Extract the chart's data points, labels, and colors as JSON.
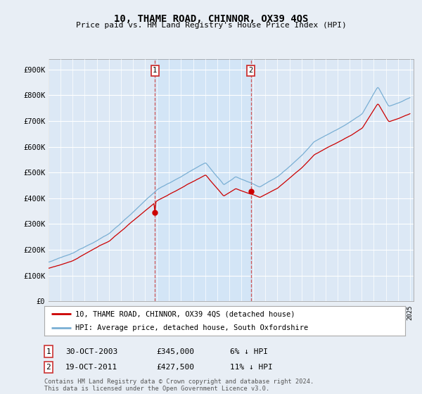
{
  "title": "10, THAME ROAD, CHINNOR, OX39 4QS",
  "subtitle": "Price paid vs. HM Land Registry's House Price Index (HPI)",
  "ylabel_ticks": [
    "£0",
    "£100K",
    "£200K",
    "£300K",
    "£400K",
    "£500K",
    "£600K",
    "£700K",
    "£800K",
    "£900K"
  ],
  "ytick_values": [
    0,
    100000,
    200000,
    300000,
    400000,
    500000,
    600000,
    700000,
    800000,
    900000
  ],
  "ylim": [
    0,
    940000
  ],
  "xlim_start": 1995.0,
  "xlim_end": 2025.3,
  "hpi_color": "#7aafd4",
  "price_color": "#cc0000",
  "marker1_year": 2003.83,
  "marker1_price": 345000,
  "marker2_year": 2011.8,
  "marker2_price": 427500,
  "shade_color": "#d0e4f7",
  "legend_label1": "10, THAME ROAD, CHINNOR, OX39 4QS (detached house)",
  "legend_label2": "HPI: Average price, detached house, South Oxfordshire",
  "table_row1": [
    "1",
    "30-OCT-2003",
    "£345,000",
    "6% ↓ HPI"
  ],
  "table_row2": [
    "2",
    "19-OCT-2011",
    "£427,500",
    "11% ↓ HPI"
  ],
  "footer": "Contains HM Land Registry data © Crown copyright and database right 2024.\nThis data is licensed under the Open Government Licence v3.0.",
  "background_color": "#e8eef5",
  "plot_bg_color": "#dce8f5",
  "title_fontsize": 10,
  "subtitle_fontsize": 8
}
